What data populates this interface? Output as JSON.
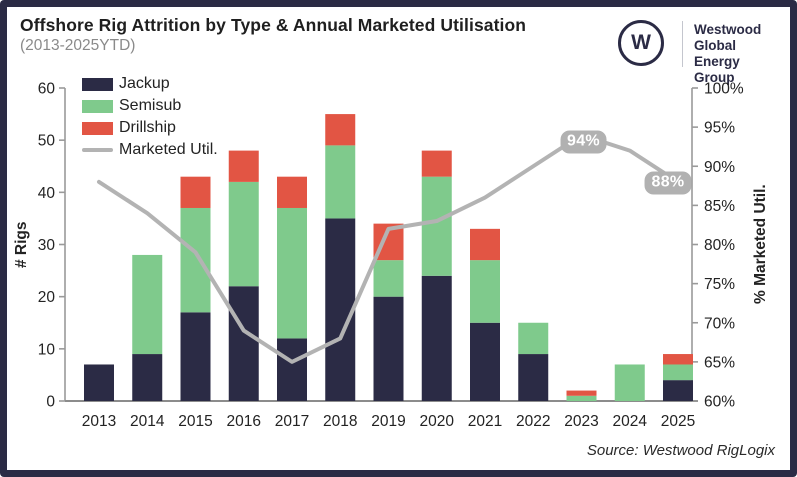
{
  "header": {
    "title": "Offshore Rig Attrition by Type & Annual Marketed Utilisation",
    "subtitle": "(2013-2025YTD)",
    "logo": {
      "monogram": "W",
      "name_lines": [
        "Westwood",
        "Global Energy",
        "Group"
      ]
    }
  },
  "footer": {
    "source": "Source: Westwood RigLogix"
  },
  "colors": {
    "frame": "#2b2b45",
    "background": "#ffffff",
    "jackup": "#2b2b45",
    "semisub": "#7fca8c",
    "drillship": "#e25544",
    "line": "#b3b3b3",
    "badge_bg": "#b1b1b1",
    "badge_text": "#ffffff",
    "axis": "#9a9a9a",
    "text_dark": "#232323",
    "text_gray": "#8a8a8a"
  },
  "chart_data": {
    "type": "bar",
    "subtype": "stacked-bars-with-line-overlay",
    "title": "Offshore Rig Attrition by Type & Annual Marketed Utilisation (2013-2025YTD)",
    "categories": [
      "2013",
      "2014",
      "2015",
      "2016",
      "2017",
      "2018",
      "2019",
      "2020",
      "2021",
      "2022",
      "2023",
      "2024",
      "2025"
    ],
    "bar_series": [
      {
        "name": "Jackup",
        "color_key": "jackup",
        "values": [
          7,
          9,
          17,
          22,
          12,
          35,
          20,
          24,
          15,
          9,
          0,
          0,
          4
        ]
      },
      {
        "name": "Semisub",
        "color_key": "semisub",
        "values": [
          0,
          19,
          20,
          20,
          25,
          14,
          7,
          19,
          12,
          6,
          1,
          7,
          3
        ]
      },
      {
        "name": "Drillship",
        "color_key": "drillship",
        "values": [
          0,
          0,
          6,
          6,
          6,
          6,
          7,
          5,
          6,
          0,
          1,
          0,
          2
        ]
      }
    ],
    "bar_totals": [
      7,
      28,
      43,
      48,
      43,
      55,
      34,
      48,
      33,
      15,
      2,
      7,
      9
    ],
    "line_series": {
      "name": "Marketed Util.",
      "color_key": "line",
      "axis": "right",
      "values_pct": [
        88,
        84,
        79,
        69,
        65,
        68,
        82,
        83,
        86,
        90,
        94,
        92,
        88
      ]
    },
    "axes": {
      "left": {
        "label": "# Rigs",
        "min": 0,
        "max": 60,
        "ticks": [
          0,
          10,
          20,
          30,
          40,
          50,
          60
        ]
      },
      "right": {
        "label": "% Marketed Util.",
        "min": 60,
        "max": 100,
        "ticks": [
          60,
          65,
          70,
          75,
          80,
          85,
          90,
          95,
          100
        ],
        "tick_suffix": "%"
      }
    },
    "legend": [
      "Jackup",
      "Semisub",
      "Drillship",
      "Marketed Util."
    ],
    "legend_position": "top-left-inside",
    "grid": "none",
    "annotations": [
      {
        "category": "2023",
        "value_pct": 94,
        "label": "94%"
      },
      {
        "category": "2025",
        "value_pct": 88,
        "label": "88%"
      }
    ]
  }
}
